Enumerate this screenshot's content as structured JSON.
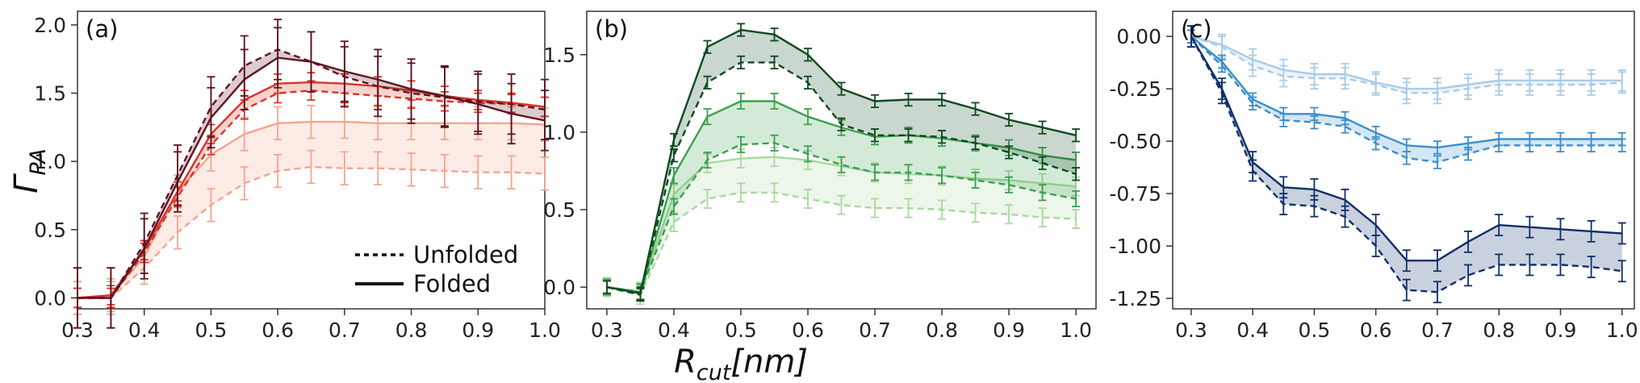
{
  "chart_data": {
    "ylabel": "Γ_PA",
    "xlabel": "R_cut[nm]",
    "legend": {
      "dashed_label": "Unfolded",
      "solid_label": "Folded",
      "placement": "bottom-right of panel (a)"
    },
    "panels": [
      {
        "panel": "(a)",
        "type": "line",
        "xlim": [
          0.3,
          1.0
        ],
        "ylim": [
          -0.08,
          2.1
        ],
        "xticks": [
          "0.3",
          "0.4",
          "0.5",
          "0.6",
          "0.7",
          "0.8",
          "0.9",
          "1.0"
        ],
        "yticks": [
          "0.0",
          "0.5",
          "1.0",
          "1.5",
          "2.0"
        ],
        "x": [
          0.3,
          0.35,
          0.4,
          0.45,
          0.5,
          0.55,
          0.6,
          0.65,
          0.7,
          0.75,
          0.8,
          0.85,
          0.9,
          0.95,
          1.0
        ],
        "series": [
          {
            "color": "#F4A58E",
            "folded": [
              0.0,
              0.02,
              0.3,
              0.78,
              1.05,
              1.2,
              1.28,
              1.29,
              1.29,
              1.28,
              1.28,
              1.28,
              1.28,
              1.28,
              1.27
            ],
            "unfolded": [
              0.0,
              0.0,
              0.22,
              0.48,
              0.68,
              0.84,
              0.93,
              0.96,
              0.95,
              0.95,
              0.94,
              0.93,
              0.92,
              0.92,
              0.91
            ],
            "err": 0.12
          },
          {
            "color": "#D9352B",
            "folded": [
              0.0,
              0.02,
              0.35,
              0.78,
              1.2,
              1.45,
              1.57,
              1.58,
              1.57,
              1.55,
              1.52,
              1.48,
              1.45,
              1.43,
              1.4
            ],
            "unfolded": [
              0.0,
              0.0,
              0.33,
              0.74,
              1.12,
              1.38,
              1.5,
              1.52,
              1.5,
              1.48,
              1.46,
              1.44,
              1.43,
              1.42,
              1.4
            ],
            "err": 0.07
          },
          {
            "color": "#5E1420",
            "folded": [
              0.0,
              0.0,
              0.36,
              0.85,
              1.32,
              1.6,
              1.76,
              1.73,
              1.66,
              1.6,
              1.53,
              1.48,
              1.42,
              1.35,
              1.3
            ],
            "unfolded": [
              0.0,
              0.0,
              0.4,
              0.9,
              1.4,
              1.7,
              1.82,
              1.73,
              1.62,
              1.55,
              1.5,
              1.47,
              1.44,
              1.42,
              1.38
            ],
            "err": 0.22
          }
        ]
      },
      {
        "panel": "(b)",
        "type": "line",
        "xlim": [
          0.27,
          1.03
        ],
        "ylim": [
          -0.14,
          1.78
        ],
        "xticks": [
          "0.3",
          "0.4",
          "0.5",
          "0.6",
          "0.7",
          "0.8",
          "0.9",
          "1.0"
        ],
        "yticks": [
          "0.0",
          "0.5",
          "1.0",
          "1.5"
        ],
        "x": [
          0.3,
          0.35,
          0.4,
          0.45,
          0.5,
          0.55,
          0.6,
          0.65,
          0.7,
          0.75,
          0.8,
          0.85,
          0.9,
          0.95,
          1.0
        ],
        "series": [
          {
            "color": "#A9D8A0",
            "folded": [
              0.0,
              -0.03,
              0.6,
              0.8,
              0.83,
              0.84,
              0.82,
              0.78,
              0.74,
              0.73,
              0.72,
              0.7,
              0.69,
              0.67,
              0.65
            ],
            "unfolded": [
              0.0,
              -0.05,
              0.42,
              0.57,
              0.61,
              0.61,
              0.57,
              0.53,
              0.51,
              0.51,
              0.5,
              0.48,
              0.47,
              0.45,
              0.44
            ],
            "err": 0.06
          },
          {
            "color": "#3BA04F",
            "folded": [
              0.0,
              -0.03,
              0.72,
              1.1,
              1.2,
              1.2,
              1.1,
              1.03,
              0.97,
              0.98,
              0.96,
              0.93,
              0.9,
              0.85,
              0.82
            ],
            "unfolded": [
              0.0,
              -0.03,
              0.52,
              0.82,
              0.92,
              0.93,
              0.86,
              0.79,
              0.74,
              0.74,
              0.72,
              0.69,
              0.66,
              0.61,
              0.57
            ],
            "err": 0.05
          },
          {
            "color": "#0F4A1F",
            "folded": [
              0.0,
              -0.04,
              0.95,
              1.55,
              1.66,
              1.63,
              1.5,
              1.28,
              1.2,
              1.21,
              1.21,
              1.15,
              1.08,
              1.03,
              0.98
            ],
            "unfolded": [
              0.0,
              -0.05,
              0.85,
              1.32,
              1.45,
              1.45,
              1.32,
              1.05,
              0.98,
              0.98,
              0.97,
              0.93,
              0.87,
              0.8,
              0.73
            ],
            "err": 0.04
          }
        ]
      },
      {
        "panel": "(c)",
        "type": "line",
        "xlim": [
          0.27,
          1.02
        ],
        "ylim": [
          -1.3,
          0.12
        ],
        "xticks": [
          "0.3",
          "0.4",
          "0.5",
          "0.6",
          "0.7",
          "0.8",
          "0.9",
          "1.0"
        ],
        "yticks": [
          "0.00",
          "-0.25",
          "-0.50",
          "-0.75",
          "-1.00",
          "-1.25"
        ],
        "x": [
          0.3,
          0.35,
          0.4,
          0.45,
          0.5,
          0.55,
          0.6,
          0.65,
          0.7,
          0.75,
          0.8,
          0.85,
          0.9,
          0.95,
          1.0
        ],
        "series": [
          {
            "color": "#A9CCE8",
            "folded": [
              0.0,
              -0.04,
              -0.11,
              -0.16,
              -0.18,
              -0.18,
              -0.22,
              -0.25,
              -0.25,
              -0.23,
              -0.21,
              -0.21,
              -0.21,
              -0.21,
              -0.21
            ],
            "unfolded": [
              0.0,
              -0.05,
              -0.14,
              -0.19,
              -0.2,
              -0.2,
              -0.23,
              -0.27,
              -0.27,
              -0.25,
              -0.23,
              -0.23,
              -0.23,
              -0.23,
              -0.22
            ],
            "err": 0.05
          },
          {
            "color": "#3C8FCB",
            "folded": [
              0.0,
              -0.12,
              -0.3,
              -0.37,
              -0.37,
              -0.39,
              -0.46,
              -0.52,
              -0.53,
              -0.51,
              -0.49,
              -0.49,
              -0.49,
              -0.49,
              -0.49
            ],
            "unfolded": [
              0.0,
              -0.14,
              -0.32,
              -0.4,
              -0.41,
              -0.43,
              -0.51,
              -0.58,
              -0.6,
              -0.56,
              -0.52,
              -0.52,
              -0.52,
              -0.52,
              -0.52
            ],
            "err": 0.03
          },
          {
            "color": "#0E2F6B",
            "folded": [
              0.0,
              -0.25,
              -0.6,
              -0.72,
              -0.73,
              -0.78,
              -0.9,
              -1.07,
              -1.07,
              -0.98,
              -0.9,
              -0.91,
              -0.92,
              -0.93,
              -0.94
            ],
            "unfolded": [
              0.0,
              -0.27,
              -0.64,
              -0.8,
              -0.81,
              -0.86,
              -1.0,
              -1.21,
              -1.22,
              -1.14,
              -1.09,
              -1.09,
              -1.09,
              -1.1,
              -1.12
            ],
            "err": 0.05
          }
        ]
      }
    ]
  }
}
